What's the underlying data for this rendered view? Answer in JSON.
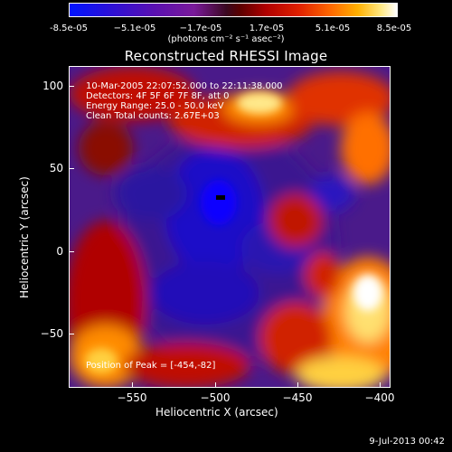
{
  "colorbar": {
    "tick_labels": [
      "-8.5e-05",
      "−5.1e-05",
      "−1.7e-05",
      "1.7e-05",
      "5.1e-05",
      "8.5e-05"
    ],
    "units": "(photons cm⁻² s⁻¹ asec⁻²)"
  },
  "title": "Reconstructed RHESSI Image",
  "annotations": {
    "time_range": "10-Mar-2005 22:07:52.000 to 22:11:38.000",
    "detectors": "Detectors: 4F 5F 6F 7F 8F, att 0",
    "energy_range": "Energy Range: 25.0 - 50.0 keV",
    "method_counts": "Clean    Total counts: 2.67E+03",
    "peak": "Position of Peak = [-454,-82]"
  },
  "axes": {
    "xlabel": "Heliocentric X (arcsec)",
    "ylabel": "Heliocentric Y (arcsec)",
    "xticks": [
      "−550",
      "−500",
      "−450",
      "−400"
    ],
    "yticks": [
      "100",
      "50",
      "0",
      "−50"
    ]
  },
  "footer": "9-Jul-2013 00:42",
  "colors": {
    "background": "#000000",
    "deep_blue": "#0000cc",
    "purple": "#5a1aa0",
    "red": "#c00000",
    "orange": "#ff6a00",
    "yellow": "#ffd040",
    "white": "#ffffff"
  }
}
